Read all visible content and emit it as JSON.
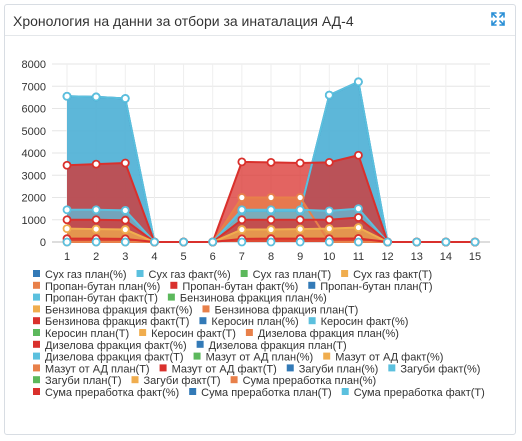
{
  "panel": {
    "title": "Хронология на данни за отбори за инаталация АД-4",
    "expand_icon": "expand-arrows-icon"
  },
  "chart_data": {
    "type": "area",
    "title": "",
    "xlabel": "",
    "ylabel": "",
    "x": [
      1,
      2,
      3,
      4,
      5,
      6,
      7,
      8,
      9,
      10,
      11,
      12,
      13,
      14,
      15
    ],
    "ylim": [
      0,
      8000
    ],
    "yticks": [
      0,
      1000,
      2000,
      3000,
      4000,
      5000,
      6000,
      7000,
      8000
    ],
    "grid": true,
    "legend_position": "bottom",
    "series": [
      {
        "name": "Сух газ план(%)",
        "color": "#337ab7",
        "values": [
          6550,
          6520,
          6450,
          0,
          0,
          0,
          1400,
          1400,
          1400,
          6600,
          7200,
          0,
          0,
          0,
          0
        ]
      },
      {
        "name": "Сух газ факт(%)",
        "color": "#5bc0de",
        "values": [
          6550,
          6520,
          6450,
          0,
          0,
          0,
          1400,
          1400,
          1400,
          6600,
          7200,
          0,
          0,
          0,
          0
        ]
      },
      {
        "name": "Сух газ план(Т)",
        "color": "#5cb85c",
        "values": [
          0,
          0,
          0,
          0,
          0,
          0,
          0,
          0,
          0,
          0,
          0,
          0,
          0,
          0,
          0
        ]
      },
      {
        "name": "Сух газ факт(Т)",
        "color": "#f0ad4e",
        "values": [
          0,
          0,
          0,
          0,
          0,
          0,
          0,
          0,
          0,
          0,
          0,
          0,
          0,
          0,
          0
        ]
      },
      {
        "name": "Пропан-бутан план(%)",
        "color": "#e8804a",
        "values": [
          0,
          0,
          0,
          0,
          0,
          0,
          2000,
          2000,
          2000,
          0,
          0,
          0,
          0,
          0,
          0
        ]
      },
      {
        "name": "Пропан-бутан факт(%)",
        "color": "#d9302c",
        "values": [
          3450,
          3500,
          3550,
          0,
          0,
          0,
          3600,
          3580,
          3550,
          3580,
          3900,
          0,
          0,
          0,
          0
        ]
      },
      {
        "name": "Пропан-бутан план(Т)",
        "color": "#337ab7",
        "values": [
          0,
          0,
          0,
          0,
          0,
          0,
          0,
          0,
          0,
          0,
          0,
          0,
          0,
          0,
          0
        ]
      },
      {
        "name": "Пропан-бутан факт(Т)",
        "color": "#5bc0de",
        "values": [
          1450,
          1450,
          1420,
          0,
          0,
          0,
          1450,
          1450,
          1450,
          1400,
          1500,
          0,
          0,
          0,
          0
        ]
      },
      {
        "name": "Бензинова фракция план(%)",
        "color": "#5cb85c",
        "values": [
          0,
          0,
          0,
          0,
          0,
          0,
          0,
          0,
          0,
          0,
          0,
          0,
          0,
          0,
          0
        ]
      },
      {
        "name": "Бензинова фракция факт(%)",
        "color": "#f0ad4e",
        "values": [
          0,
          0,
          0,
          0,
          0,
          0,
          0,
          0,
          0,
          0,
          0,
          0,
          0,
          0,
          0
        ]
      },
      {
        "name": "Бензинова фракция план(Т)",
        "color": "#e8804a",
        "values": [
          0,
          0,
          0,
          0,
          0,
          0,
          0,
          0,
          0,
          0,
          0,
          0,
          0,
          0,
          0
        ]
      },
      {
        "name": "Бензинова фракция факт(Т)",
        "color": "#d9302c",
        "values": [
          1000,
          1000,
          980,
          0,
          0,
          0,
          1000,
          1000,
          1000,
          1000,
          1100,
          0,
          0,
          0,
          0
        ]
      },
      {
        "name": "Керосин план(%)",
        "color": "#337ab7",
        "values": [
          0,
          0,
          0,
          0,
          0,
          0,
          0,
          0,
          0,
          0,
          0,
          0,
          0,
          0,
          0
        ]
      },
      {
        "name": "Керосин факт(%)",
        "color": "#5bc0de",
        "values": [
          0,
          0,
          0,
          0,
          0,
          0,
          0,
          0,
          0,
          0,
          0,
          0,
          0,
          0,
          0
        ]
      },
      {
        "name": "Керосин план(Т)",
        "color": "#5cb85c",
        "values": [
          0,
          0,
          0,
          0,
          0,
          0,
          0,
          0,
          0,
          0,
          0,
          0,
          0,
          0,
          0
        ]
      },
      {
        "name": "Керосин факт(Т)",
        "color": "#f0ad4e",
        "values": [
          600,
          580,
          560,
          0,
          0,
          0,
          560,
          560,
          580,
          600,
          650,
          0,
          0,
          0,
          0
        ]
      },
      {
        "name": "Дизелова фракция план(%)",
        "color": "#e8804a",
        "values": [
          0,
          0,
          0,
          0,
          0,
          0,
          0,
          0,
          0,
          0,
          0,
          0,
          0,
          0,
          0
        ]
      },
      {
        "name": "Дизелова фракция факт(%)",
        "color": "#d9302c",
        "values": [
          0,
          0,
          0,
          0,
          0,
          0,
          0,
          0,
          0,
          0,
          0,
          0,
          0,
          0,
          0
        ]
      },
      {
        "name": "Дизелова фракция план(Т)",
        "color": "#337ab7",
        "values": [
          0,
          0,
          0,
          0,
          0,
          0,
          0,
          0,
          0,
          0,
          0,
          0,
          0,
          0,
          0
        ]
      },
      {
        "name": "Дизелова фракция факт(Т)",
        "color": "#5bc0de",
        "values": [
          0,
          0,
          0,
          0,
          0,
          0,
          0,
          0,
          0,
          0,
          0,
          0,
          0,
          0,
          0
        ]
      },
      {
        "name": "Мазут от АД план(%)",
        "color": "#5cb85c",
        "values": [
          0,
          0,
          0,
          0,
          0,
          0,
          0,
          0,
          0,
          0,
          0,
          0,
          0,
          0,
          0
        ]
      },
      {
        "name": "Мазут от АД факт(%)",
        "color": "#f0ad4e",
        "values": [
          0,
          0,
          0,
          0,
          0,
          0,
          0,
          0,
          0,
          0,
          0,
          0,
          0,
          0,
          0
        ]
      },
      {
        "name": "Мазут от АД план(Т)",
        "color": "#e8804a",
        "values": [
          0,
          0,
          0,
          0,
          0,
          0,
          0,
          0,
          0,
          0,
          0,
          0,
          0,
          0,
          0
        ]
      },
      {
        "name": "Мазут от АД факт(Т)",
        "color": "#d9302c",
        "values": [
          150,
          150,
          140,
          0,
          0,
          0,
          140,
          150,
          150,
          150,
          160,
          0,
          0,
          0,
          0
        ]
      },
      {
        "name": "Загуби план(%)",
        "color": "#337ab7",
        "values": [
          0,
          0,
          0,
          0,
          0,
          0,
          0,
          0,
          0,
          0,
          0,
          0,
          0,
          0,
          0
        ]
      },
      {
        "name": "Загуби факт(%)",
        "color": "#5bc0de",
        "values": [
          0,
          0,
          0,
          0,
          0,
          0,
          0,
          0,
          0,
          0,
          0,
          0,
          0,
          0,
          0
        ]
      },
      {
        "name": "Загуби план(Т)",
        "color": "#5cb85c",
        "values": [
          0,
          0,
          0,
          0,
          0,
          0,
          0,
          0,
          0,
          0,
          0,
          0,
          0,
          0,
          0
        ]
      },
      {
        "name": "Загуби факт(Т)",
        "color": "#f0ad4e",
        "values": [
          0,
          0,
          0,
          0,
          0,
          0,
          0,
          0,
          0,
          0,
          0,
          0,
          0,
          0,
          0
        ]
      },
      {
        "name": "Сума преработка план(%)",
        "color": "#e8804a",
        "values": [
          0,
          0,
          0,
          0,
          0,
          0,
          0,
          0,
          0,
          0,
          0,
          0,
          0,
          0,
          0
        ]
      },
      {
        "name": "Сума преработка факт(%)",
        "color": "#d9302c",
        "values": [
          0,
          0,
          0,
          0,
          0,
          0,
          0,
          0,
          0,
          0,
          0,
          0,
          0,
          0,
          0
        ]
      },
      {
        "name": "Сума преработка план(Т)",
        "color": "#337ab7",
        "values": [
          0,
          0,
          0,
          0,
          0,
          0,
          0,
          0,
          0,
          0,
          0,
          0,
          0,
          0,
          0
        ]
      },
      {
        "name": "Сума преработка факт(Т)",
        "color": "#5bc0de",
        "values": [
          0,
          0,
          0,
          0,
          0,
          0,
          0,
          0,
          0,
          0,
          0,
          0,
          0,
          0,
          0
        ]
      }
    ]
  }
}
